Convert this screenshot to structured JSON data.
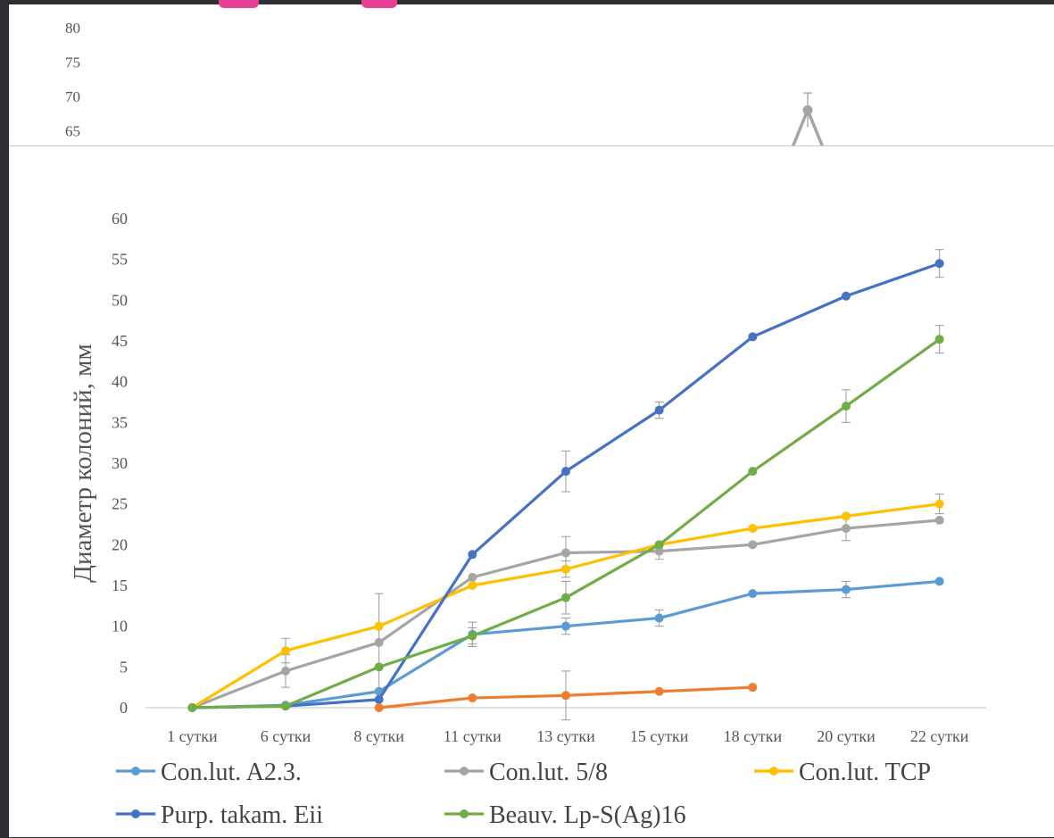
{
  "back_chart": {
    "y_ticks": [
      "80",
      "75",
      "70",
      "65"
    ],
    "visible_point": {
      "value": 68,
      "error": 2.5
    }
  },
  "chart_data": {
    "type": "line",
    "categories": [
      "1 сутки",
      "6 сутки",
      "8 сутки",
      "11 сутки",
      "13 сутки",
      "15 сутки",
      "18 сутки",
      "20 сутки",
      "22 сутки"
    ],
    "ylabel": "Диаметр колоний, мм",
    "xlabel": "",
    "ylim": [
      0,
      60
    ],
    "yticks": [
      0,
      5,
      10,
      15,
      20,
      25,
      30,
      35,
      40,
      45,
      50,
      55,
      60
    ],
    "grid": false,
    "legend_position": "bottom",
    "series": [
      {
        "name": "Con.lut. A2.3.",
        "color": "#5b9bd5",
        "values": [
          0,
          0.3,
          2,
          9,
          10,
          11,
          14,
          14.5,
          15.5
        ],
        "errors": [
          0,
          0,
          0,
          1.5,
          1,
          1,
          0,
          1,
          0
        ]
      },
      {
        "name": "Con.lut. 5/8",
        "color": "#a5a5a5",
        "values": [
          0,
          4.5,
          8,
          16,
          19,
          19.2,
          20,
          22,
          23
        ],
        "errors": [
          0,
          2,
          6,
          0,
          2,
          1,
          0,
          1.5,
          0
        ]
      },
      {
        "name": "Con.lut. TCP",
        "color": "#ffc000",
        "values": [
          0,
          7,
          10,
          15,
          17,
          20,
          22,
          23.5,
          25
        ],
        "errors": [
          0,
          1.5,
          0,
          0,
          1,
          0,
          0,
          0,
          1.2
        ]
      },
      {
        "name": "Purp. takam. Eii",
        "color": "#4472c4",
        "values": [
          0,
          0.2,
          1,
          18.8,
          29,
          36.5,
          45.5,
          50.5,
          54.5
        ],
        "errors": [
          0,
          0,
          0,
          0,
          2.5,
          1,
          0,
          0,
          1.7
        ]
      },
      {
        "name": "Beauv. Lp-S(Ag)16",
        "color": "#70ad47",
        "values": [
          0,
          0.2,
          5,
          8.8,
          13.5,
          20,
          29,
          37,
          45.2
        ],
        "errors": [
          0,
          0,
          0,
          1,
          2,
          0,
          0,
          2,
          1.7
        ]
      },
      {
        "name": "",
        "color": "#ed7d31",
        "values": [
          null,
          null,
          0,
          1.2,
          1.5,
          2,
          2.5,
          null,
          null
        ],
        "errors": [
          0,
          0,
          0,
          0,
          3,
          0,
          0,
          0,
          0
        ]
      }
    ]
  }
}
